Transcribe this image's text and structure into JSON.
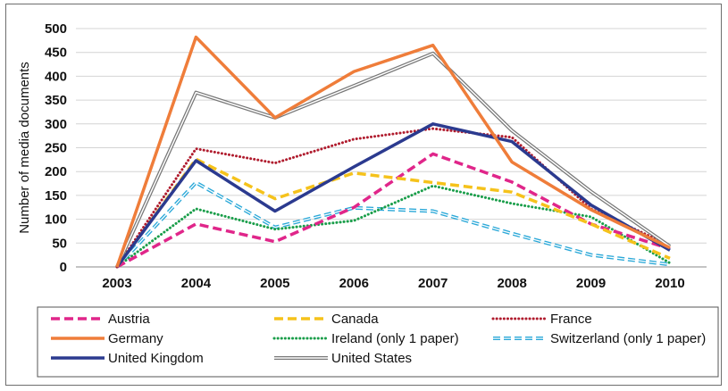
{
  "chart_data": {
    "type": "line",
    "title": "",
    "xlabel": "",
    "ylabel": "Number of media documents",
    "ylim": [
      0,
      500
    ],
    "yticks": [
      0,
      50,
      100,
      150,
      200,
      250,
      300,
      350,
      400,
      450,
      500
    ],
    "grid": true,
    "legend_position": "bottom",
    "categories": [
      "2003",
      "2004",
      "2005",
      "2006",
      "2007",
      "2008",
      "2009",
      "2010"
    ],
    "series": [
      {
        "name": "Austria",
        "color": "#e0268a",
        "style": "dashed",
        "values": [
          0,
          90,
          53,
          125,
          237,
          178,
          90,
          38
        ]
      },
      {
        "name": "Canada",
        "color": "#f5c21b",
        "style": "dashed",
        "values": [
          0,
          226,
          143,
          197,
          177,
          157,
          90,
          18
        ]
      },
      {
        "name": "France",
        "color": "#b01c2e",
        "style": "dotted",
        "values": [
          0,
          248,
          218,
          268,
          290,
          272,
          122,
          45
        ]
      },
      {
        "name": "Germany",
        "color": "#ef7d3a",
        "style": "solid",
        "values": [
          0,
          482,
          313,
          410,
          465,
          220,
          120,
          40
        ]
      },
      {
        "name": "Ireland (only 1 paper)",
        "color": "#1a9e4a",
        "style": "dotted",
        "values": [
          0,
          122,
          79,
          97,
          170,
          133,
          105,
          8
        ]
      },
      {
        "name": "Switzerland (only 1 paper)",
        "color": "#2aa8d8",
        "style": "double-dashed",
        "values": [
          0,
          177,
          83,
          124,
          117,
          70,
          25,
          5
        ]
      },
      {
        "name": "United Kingdom",
        "color": "#2b3a8f",
        "style": "solid",
        "values": [
          0,
          223,
          117,
          210,
          300,
          263,
          130,
          35
        ]
      },
      {
        "name": "United States",
        "color": "#777777",
        "style": "double",
        "values": [
          0,
          366,
          313,
          380,
          448,
          286,
          158,
          43
        ]
      }
    ]
  }
}
